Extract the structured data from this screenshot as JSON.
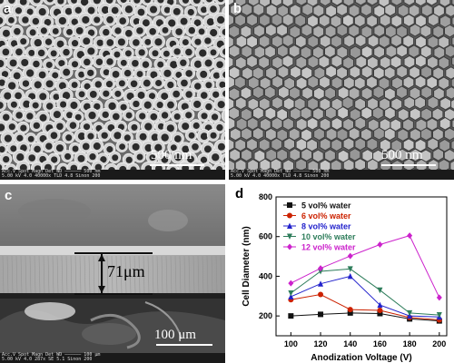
{
  "panels": {
    "a": {
      "label": "a",
      "scale": "500 nm",
      "info_line1": "Acc.V  Spot Magn   Det  WD   ——————  500 nm",
      "info_line2": "5.00 kV 4.0  40000x  TLD  4.8   Sinon 200"
    },
    "b": {
      "label": "b",
      "scale": "500 nm",
      "info_line1": "Acc.V  Spot Magn   Det  WD   ——————  500 nm",
      "info_line2": "5.00 kV 4.0  40000x  TLD  4.8   Sinon 200"
    },
    "c": {
      "label": "c",
      "thickness": "71μm",
      "scale": "100 μm",
      "info_line1": "Acc.V  Spot Magn  Det  WD   ——————  100 μm",
      "info_line2": "5.00 kV 4.0  287x  SE  5.1   Sinon 200"
    },
    "d": {
      "label": "d"
    }
  },
  "chart_data": {
    "type": "line",
    "xlabel": "Anodization Voltage (V)",
    "ylabel": "Cell Diameter (nm)",
    "xlim": [
      90,
      205
    ],
    "ylim": [
      100,
      800
    ],
    "xticks": [
      100,
      120,
      140,
      160,
      180,
      200
    ],
    "yticks": [
      200,
      400,
      600,
      800
    ],
    "legend_position": "top-left",
    "series": [
      {
        "name": "5 vol% water",
        "color": "#111111",
        "marker": "square",
        "x": [
          100,
          120,
          140,
          160,
          180,
          200
        ],
        "values": [
          200,
          208,
          215,
          212,
          185,
          175
        ]
      },
      {
        "name": "6 vol% water",
        "color": "#cc2200",
        "marker": "circle",
        "x": [
          100,
          120,
          140,
          160,
          180,
          200
        ],
        "values": [
          282,
          308,
          232,
          228,
          192,
          180
        ]
      },
      {
        "name": "8 vol% water",
        "color": "#2222cc",
        "marker": "triangle-up",
        "x": [
          100,
          120,
          140,
          160,
          180,
          200
        ],
        "values": [
          297,
          362,
          400,
          255,
          200,
          195
        ]
      },
      {
        "name": "10 vol% water",
        "color": "#2e7d5b",
        "marker": "triangle-down",
        "x": [
          100,
          120,
          140,
          160,
          180,
          200
        ],
        "values": [
          315,
          425,
          437,
          330,
          215,
          205
        ]
      },
      {
        "name": "12 vol% water",
        "color": "#cc22cc",
        "marker": "diamond",
        "x": [
          100,
          120,
          140,
          160,
          180,
          200
        ],
        "values": [
          365,
          440,
          502,
          560,
          605,
          293
        ]
      }
    ]
  }
}
